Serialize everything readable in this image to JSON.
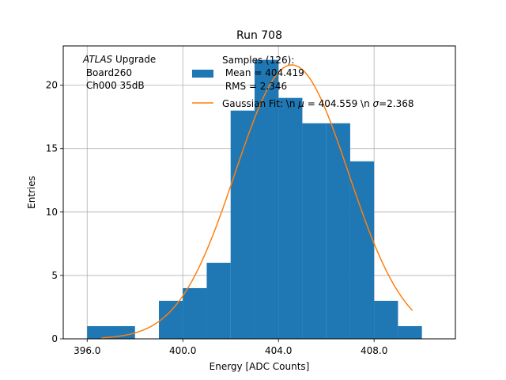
{
  "chart_data": {
    "type": "bar",
    "title": "Run 708",
    "xlabel": "Energy [ADC Counts]",
    "ylabel": "Entries",
    "xlim": [
      395.0,
      411.4
    ],
    "ylim": [
      0,
      23.1
    ],
    "grid": true,
    "xticks": [
      396.0,
      400.0,
      404.0,
      408.0
    ],
    "xtick_labels": [
      "396.0",
      "400.0",
      "404.0",
      "408.0"
    ],
    "yticks": [
      0,
      5,
      10,
      15,
      20
    ],
    "ytick_labels": [
      "0",
      "5",
      "10",
      "15",
      "20"
    ],
    "histogram": {
      "bin_width": 1.0,
      "bin_starts": [
        396,
        397,
        398,
        399,
        400,
        401,
        402,
        403,
        404,
        405,
        406,
        407,
        408,
        409
      ],
      "counts": [
        1,
        1,
        0,
        3,
        4,
        6,
        18,
        22,
        19,
        17,
        17,
        14,
        3,
        1
      ],
      "color": "#1f77b4"
    },
    "fit": {
      "type": "gaussian",
      "mu": 404.559,
      "sigma": 2.368,
      "x_range": [
        396.6,
        409.6
      ],
      "peak": 21.6,
      "color": "#ff7f0e"
    },
    "annotation": {
      "line1_italic": "ATLAS",
      "line1_rest": " Upgrade",
      "line2": " Board260",
      "line3": " Ch000 35dB"
    },
    "legend": {
      "position": "top-right",
      "entries": [
        {
          "name": "samples",
          "lines": [
            "Samples (126):",
            " Mean = 404.419",
            " RMS = 2.346"
          ],
          "color": "#1f77b4"
        },
        {
          "name": "fit",
          "parts": {
            "before_mu": "Gaussian Fit: \\n ",
            "mu_symbol": "μ",
            "between": " = 404.559 \\n ",
            "sigma_symbol": "σ",
            "after_sigma": "=2.368"
          },
          "color": "#ff7f0e"
        }
      ]
    }
  }
}
